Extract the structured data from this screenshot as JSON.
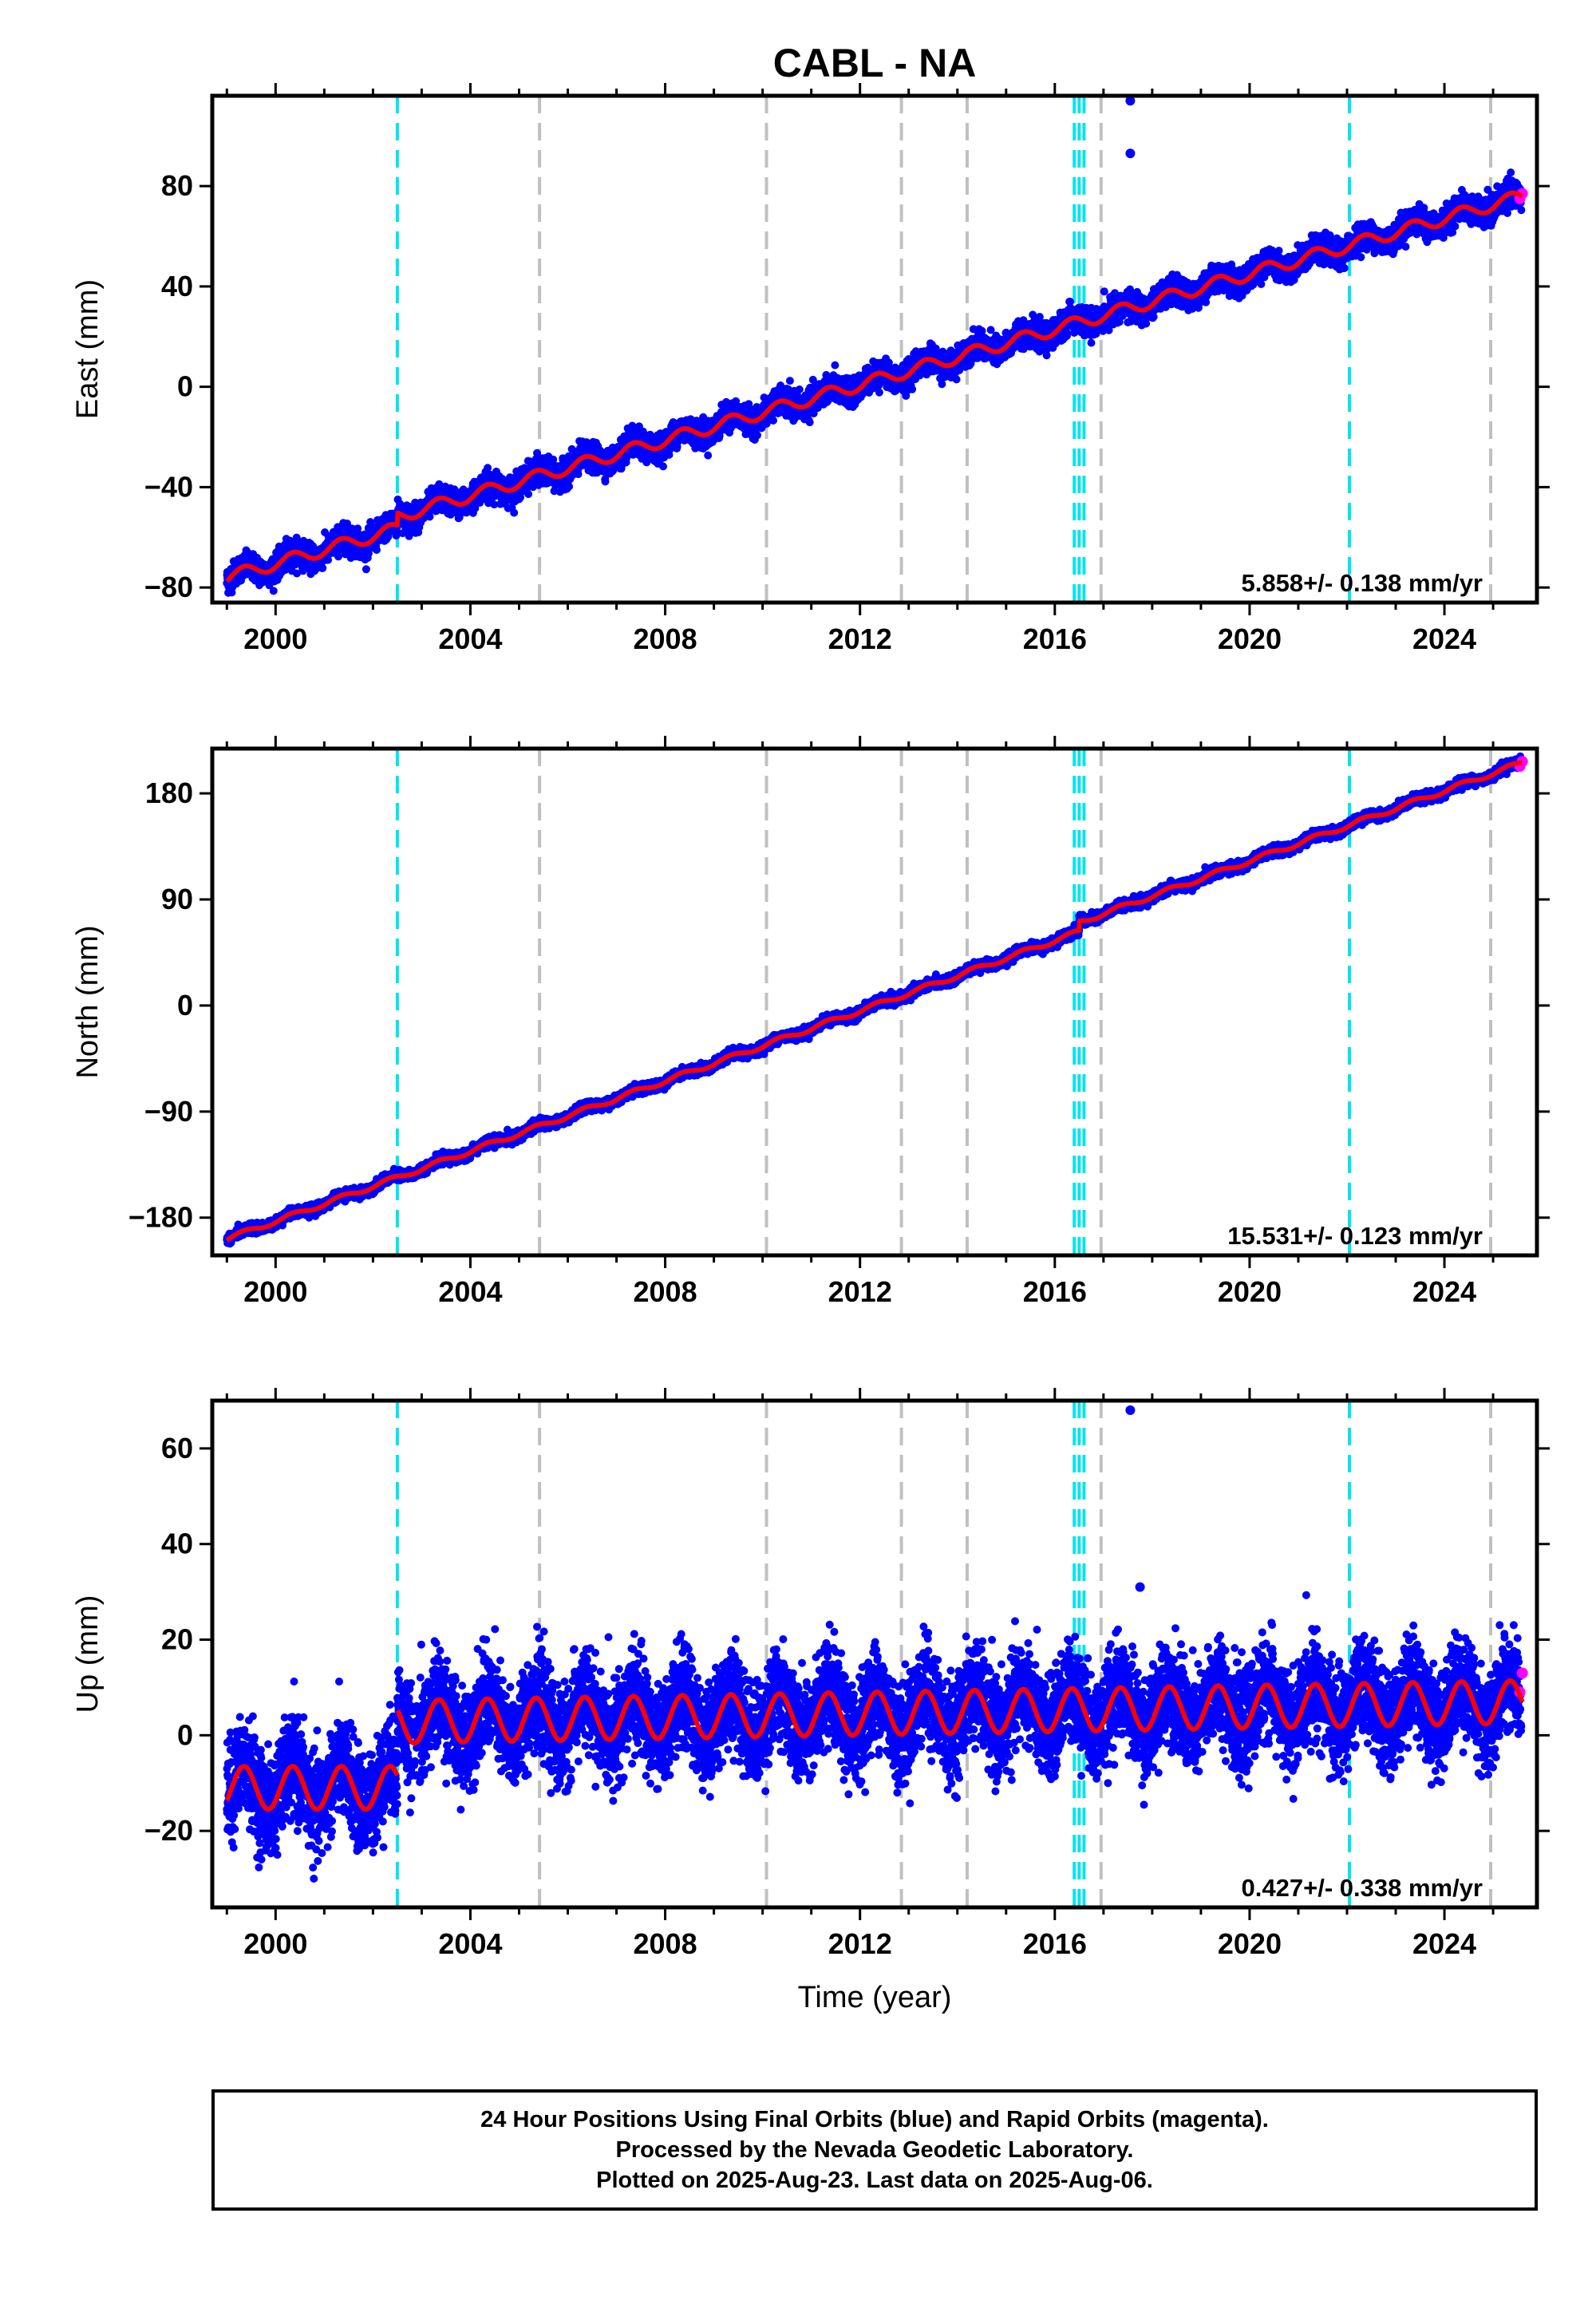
{
  "chart_data": {
    "type": "scatter",
    "title": "CABL - NA",
    "xlabel": "Time (year)",
    "xlim": [
      1998.7,
      2025.9
    ],
    "x_ticks": [
      2000,
      2004,
      2008,
      2012,
      2016,
      2020,
      2024
    ],
    "x_tick_labels": [
      "2000",
      "2004",
      "2008",
      "2012",
      "2016",
      "2020",
      "2024"
    ],
    "grid": false,
    "legend": "none",
    "colors": {
      "final_orbits": "#0000ff",
      "rapid_orbits": "#ff00ff",
      "model_fit": "#ff0000",
      "equipment_change": "#00e5ee",
      "other_event": "#c0c0c0"
    },
    "vertical_lines": {
      "equipment_change": [
        2002.5,
        2016.4,
        2016.5,
        2016.6,
        2022.05
      ],
      "other_event": [
        2005.42,
        2010.08,
        2012.85,
        2014.2,
        2016.95,
        2024.95
      ]
    },
    "panels": [
      {
        "component": "east",
        "ylabel": "East (mm)",
        "ylim": [
          -86,
          116
        ],
        "y_ticks": [
          -80,
          -40,
          0,
          40,
          80
        ],
        "y_tick_labels": [
          "−80",
          "−40",
          "0",
          "40",
          "80"
        ],
        "velocity_label": "5.858+/- 0.138 mm/yr",
        "trend": {
          "start": [
            1999.0,
            -76
          ],
          "end": [
            2025.6,
            76
          ],
          "seasonal_amplitude": 2.5
        },
        "offsets": [
          {
            "year": 2002.5,
            "size": 5
          }
        ],
        "scatter": 2.5,
        "outliers": [
          {
            "x": 2017.55,
            "y": 114
          },
          {
            "x": 2017.55,
            "y": 93
          }
        ],
        "rapid_points": [
          {
            "x": 2025.55,
            "y": 75
          },
          {
            "x": 2025.6,
            "y": 77
          }
        ]
      },
      {
        "component": "north",
        "ylabel": "North (mm)",
        "ylim": [
          -212,
          218
        ],
        "y_ticks": [
          -180,
          -90,
          0,
          90,
          180
        ],
        "y_tick_labels": [
          "−180",
          "−90",
          "0",
          "90",
          "180"
        ],
        "velocity_label": "15.531+/- 0.123 mm/yr",
        "trend": {
          "start": [
            1999.0,
            -198
          ],
          "end": [
            2025.6,
            206
          ],
          "seasonal_amplitude": 2.0
        },
        "offsets": [
          {
            "year": 2016.5,
            "size": 8
          }
        ],
        "scatter": 2.0,
        "outliers": [],
        "rapid_points": [
          {
            "x": 2025.55,
            "y": 203
          },
          {
            "x": 2025.6,
            "y": 207
          }
        ]
      },
      {
        "component": "up",
        "ylabel": "Up (mm)",
        "ylim": [
          -36,
          70
        ],
        "y_ticks": [
          -20,
          0,
          20,
          40,
          60
        ],
        "y_tick_labels": [
          "−20",
          "0",
          "20",
          "40",
          "60"
        ],
        "velocity_label": "0.427+/- 0.338 mm/yr",
        "segments": [
          {
            "from": 1999.0,
            "to": 2002.5,
            "level": -11,
            "rate": 0.0
          },
          {
            "from": 2002.5,
            "to": 2025.6,
            "level": 2.8,
            "rate": 0.18
          }
        ],
        "seasonal_amplitude": 4.5,
        "scatter": 5.0,
        "outliers": [
          {
            "x": 2017.55,
            "y": 68
          },
          {
            "x": 2017.75,
            "y": 31
          }
        ],
        "rapid_points": [
          {
            "x": 2025.55,
            "y": 9
          },
          {
            "x": 2025.6,
            "y": 13
          }
        ]
      }
    ]
  },
  "footer": {
    "line1": "24 Hour Positions Using Final Orbits (blue) and Rapid Orbits (magenta).",
    "line2": "Processed by the Nevada Geodetic Laboratory.",
    "line3": "Plotted on 2025-Aug-23. Last data on 2025-Aug-06."
  }
}
